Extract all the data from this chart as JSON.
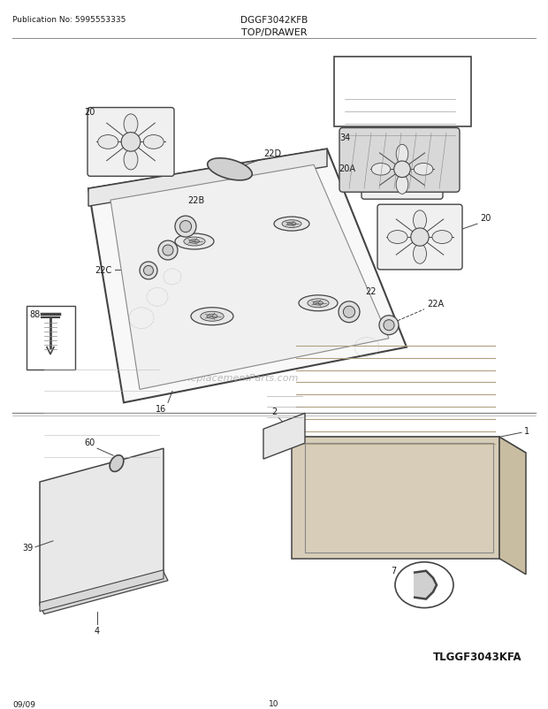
{
  "page_title": "TOP/DRAWER",
  "model": "DGGF3042KFB",
  "publication": "Publication No: 5995553335",
  "date": "09/09",
  "page_number": "10",
  "watermark": "eReplacementParts.com",
  "tlggf_text": "TLGGF3043KFA",
  "bg_color": "#ffffff",
  "text_color": "#1a1a1a",
  "line_color": "#444444",
  "gray_fill": "#e8e8e8",
  "light_fill": "#f2f2f2",
  "tan_fill": "#d4b87a"
}
